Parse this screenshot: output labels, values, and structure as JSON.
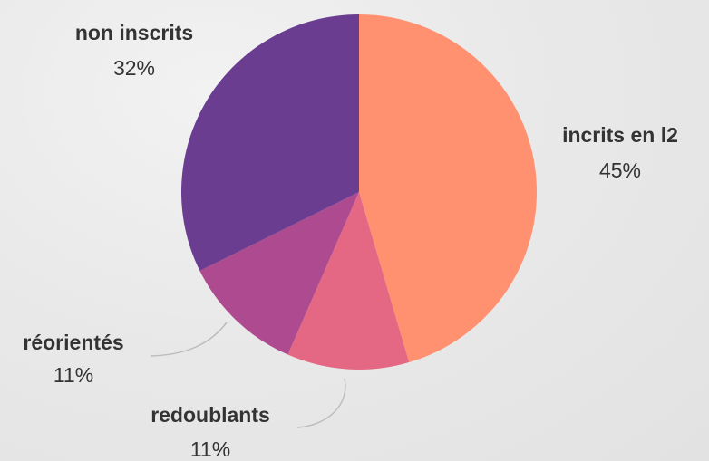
{
  "chart_data": {
    "type": "pie",
    "slices": [
      {
        "label": "incrits en l2",
        "value": 45,
        "value_label": "45%",
        "color": "#FF9171"
      },
      {
        "label": "redoublants",
        "value": 11,
        "value_label": "11%",
        "color": "#E46883"
      },
      {
        "label": "réorientés",
        "value": 11,
        "value_label": "11%",
        "color": "#AE4A8F"
      },
      {
        "label": "non inscrits",
        "value": 32,
        "value_label": "32%",
        "color": "#6A3D90"
      }
    ]
  }
}
